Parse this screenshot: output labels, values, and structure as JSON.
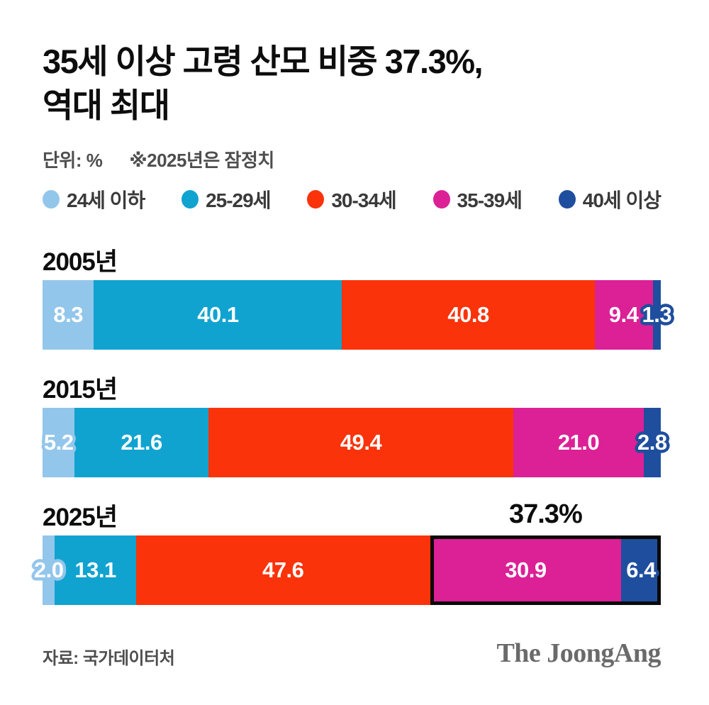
{
  "title": {
    "line1": "35세 이상 고령 산모 비중 37.3%,",
    "line2": "역대 최대"
  },
  "subtitle": {
    "unit_label": "단위: %",
    "note": "※2025년은 잠정치"
  },
  "legend": [
    {
      "label": "24세 이하",
      "color": "#93C6EB"
    },
    {
      "label": "25-29세",
      "color": "#10A3D0"
    },
    {
      "label": "30-34세",
      "color": "#FA330A"
    },
    {
      "label": "35-39세",
      "color": "#DC2096"
    },
    {
      "label": "40세 이상",
      "color": "#1F4E9E"
    }
  ],
  "chart_data": {
    "type": "bar",
    "stacked": true,
    "orientation": "horizontal",
    "unit": "%",
    "xlim": [
      0,
      100
    ],
    "series": [
      "24세 이하",
      "25-29세",
      "30-34세",
      "35-39세",
      "40세 이상"
    ],
    "colors": [
      "#93C6EB",
      "#10A3D0",
      "#FA330A",
      "#DC2096",
      "#1F4E9E"
    ],
    "rows": [
      {
        "year": "2005년",
        "values": [
          8.3,
          40.1,
          40.8,
          9.4,
          1.3
        ],
        "labels": [
          "8.3",
          "40.1",
          "40.8",
          "9.4",
          "1.3"
        ]
      },
      {
        "year": "2015년",
        "values": [
          5.2,
          21.6,
          49.4,
          21.0,
          2.8
        ],
        "labels": [
          "5.2",
          "21.6",
          "49.4",
          "21.0",
          "2.8"
        ]
      },
      {
        "year": "2025년",
        "values": [
          2.0,
          13.1,
          47.6,
          30.9,
          6.4
        ],
        "labels": [
          "2.0",
          "13.1",
          "47.6",
          "30.9",
          "6.4"
        ],
        "highlight": {
          "label": "37.3%",
          "from": 3,
          "to": 4
        }
      }
    ]
  },
  "footer": {
    "source": "자료: 국가데이터처",
    "brand": "The JoongAng"
  }
}
